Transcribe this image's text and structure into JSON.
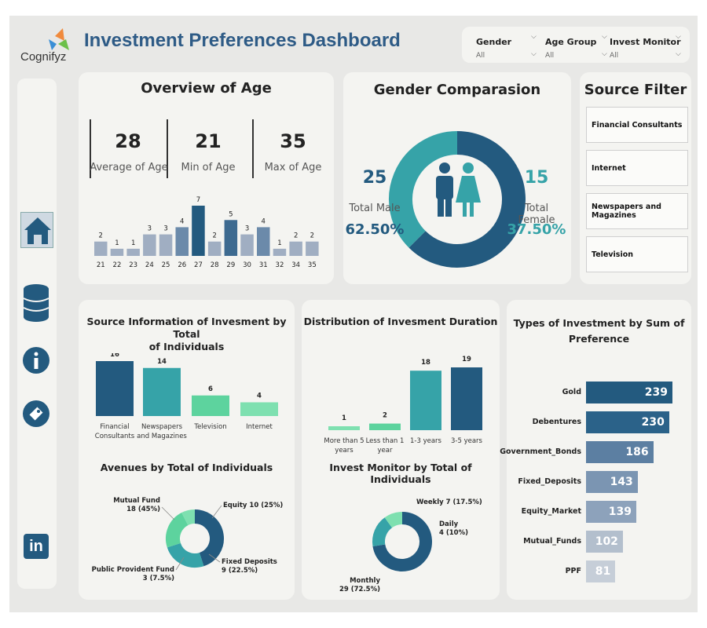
{
  "header": {
    "logo_text": "Cognifyz",
    "title": "Investment Preferences Dashboard"
  },
  "filters": [
    {
      "label": "Gender",
      "value": "All"
    },
    {
      "label": "Age Group",
      "value": "All"
    },
    {
      "label": "Invest Monitor",
      "value": "All"
    }
  ],
  "sidebar": {
    "items": [
      "home-icon",
      "database-icon",
      "info-icon",
      "tag-icon",
      "linkedin-icon"
    ]
  },
  "age": {
    "title": "Overview of Age",
    "average": "28",
    "average_label": "Average of Age",
    "min": "21",
    "min_label": "Min of Age",
    "max": "35",
    "max_label": "Max of Age"
  },
  "gender": {
    "title": "Gender Comparasion",
    "male_count": "25",
    "male_label": "Total Male",
    "male_pct": "62.50%",
    "female_count": "15",
    "female_label": "Total Female",
    "female_pct": "37.50%"
  },
  "source_filter": {
    "title": "Source Filter",
    "items": [
      "Financial Consultants",
      "Internet",
      "Newspapers and Magazines",
      "Television"
    ]
  },
  "source_info": {
    "title_line1": "Source Information of Invesment by Total",
    "title_line2": "of Individuals"
  },
  "duration": {
    "title": "Distribution of Invesment Duration"
  },
  "types": {
    "title_line1": "Types of Investment by Sum of",
    "title_line2": "Preference"
  },
  "avenues": {
    "title": "Avenues by Total of Individuals"
  },
  "monitor": {
    "title": "Invest Monitor by Total of Individuals"
  },
  "colors": {
    "dark": "#235a7f",
    "teal": "#36a3a8",
    "green": "#5dd39e",
    "light": "#a0aec2",
    "mid": "#5c7fa2"
  },
  "chart_data": [
    {
      "type": "bar",
      "categories": [
        "21",
        "22",
        "23",
        "24",
        "25",
        "26",
        "27",
        "28",
        "29",
        "30",
        "31",
        "32",
        "34",
        "35"
      ],
      "values": [
        2,
        1,
        1,
        3,
        3,
        4,
        7,
        2,
        5,
        3,
        4,
        1,
        2,
        2
      ]
    },
    {
      "type": "pie",
      "categories": [
        "Total Male",
        "Total Female"
      ],
      "values": [
        25,
        15
      ]
    },
    {
      "type": "bar",
      "categories": [
        "Financial Consultants",
        "Newspapers and Magazines",
        "Television",
        "Internet"
      ],
      "values": [
        16,
        14,
        6,
        4
      ]
    },
    {
      "type": "bar",
      "categories": [
        "More than 5 years",
        "Less than 1 year",
        "1-3 years",
        "3-5 years"
      ],
      "values": [
        1,
        2,
        18,
        19
      ]
    },
    {
      "type": "bar",
      "categories": [
        "Gold",
        "Debentures",
        "Government_Bonds",
        "Fixed_Deposits",
        "Equity_Market",
        "Mutual_Funds",
        "PPF"
      ],
      "values": [
        239,
        230,
        186,
        143,
        139,
        102,
        81
      ]
    },
    {
      "type": "pie",
      "categories": [
        "Mutual Fund",
        "Equity",
        "Fixed Deposits",
        "Public Provident Fund"
      ],
      "values": [
        18,
        10,
        9,
        3
      ],
      "labels": [
        "Mutual Fund\n18 (45%)",
        "Equity 10 (25%)",
        "Fixed Deposits\n9 (22.5%)",
        "Public Provident Fund\n3 (7.5%)"
      ]
    },
    {
      "type": "pie",
      "categories": [
        "Monthly",
        "Weekly",
        "Daily"
      ],
      "values": [
        29,
        7,
        4
      ],
      "labels": [
        "Monthly\n29 (72.5%)",
        "Weekly 7 (17.5%)",
        "Daily\n4 (10%)"
      ]
    }
  ]
}
